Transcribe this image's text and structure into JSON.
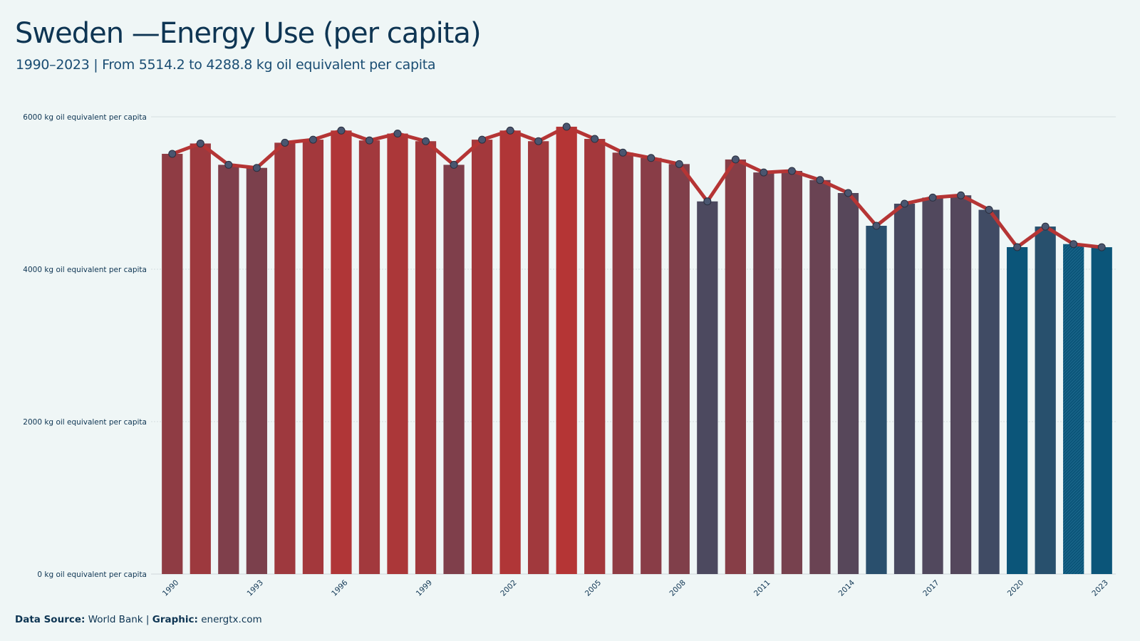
{
  "title": "Sweden —Energy Use (per capita)",
  "subtitle": "1990–2023 | From 5514.2  to 4288.8  kg oil equivalent per capita",
  "footer": {
    "source_label": "Data Source:",
    "source_value": "World Bank",
    "separator": "|",
    "graphic_label": "Graphic:",
    "graphic_value": "energtx.com"
  },
  "colors": {
    "high": "#b53535",
    "low": "#0b5579",
    "line": "#b53535",
    "marker": "#4a5670",
    "grid": "#d5dde0",
    "background": "#eff6f6"
  },
  "chart_data": {
    "type": "bar",
    "unit": "kg oil equivalent per capita",
    "years": [
      1990,
      1991,
      1992,
      1993,
      1994,
      1995,
      1996,
      1997,
      1998,
      1999,
      2000,
      2001,
      2002,
      2003,
      2004,
      2005,
      2006,
      2007,
      2008,
      2009,
      2010,
      2011,
      2012,
      2013,
      2014,
      2015,
      2016,
      2017,
      2018,
      2019,
      2020,
      2021,
      2022,
      2023
    ],
    "values": [
      5514.2,
      5650,
      5370,
      5330,
      5660,
      5700,
      5820,
      5690,
      5780,
      5680,
      5370,
      5700,
      5820,
      5680,
      5870,
      5710,
      5530,
      5460,
      5380,
      4890,
      5440,
      5270,
      5290,
      5170,
      5000,
      4570,
      4860,
      4940,
      4970,
      4780,
      4290,
      4560,
      4330,
      4288.8
    ],
    "x_tick_labels": [
      "1990",
      "1993",
      "1996",
      "1999",
      "2002",
      "2005",
      "2008",
      "2011",
      "2014",
      "2017",
      "2020",
      "2023"
    ],
    "y_ticks": [
      0,
      2000,
      4000,
      6000
    ],
    "y_tick_labels": [
      "0 kg oil equivalent per capita",
      "2000 kg oil equivalent per capita",
      "4000 kg oil equivalent per capita",
      "6000 kg oil equivalent per capita"
    ],
    "ylim": [
      0,
      6000
    ],
    "grid": true,
    "overlay_line": true,
    "hatched_years": [
      2022
    ]
  }
}
